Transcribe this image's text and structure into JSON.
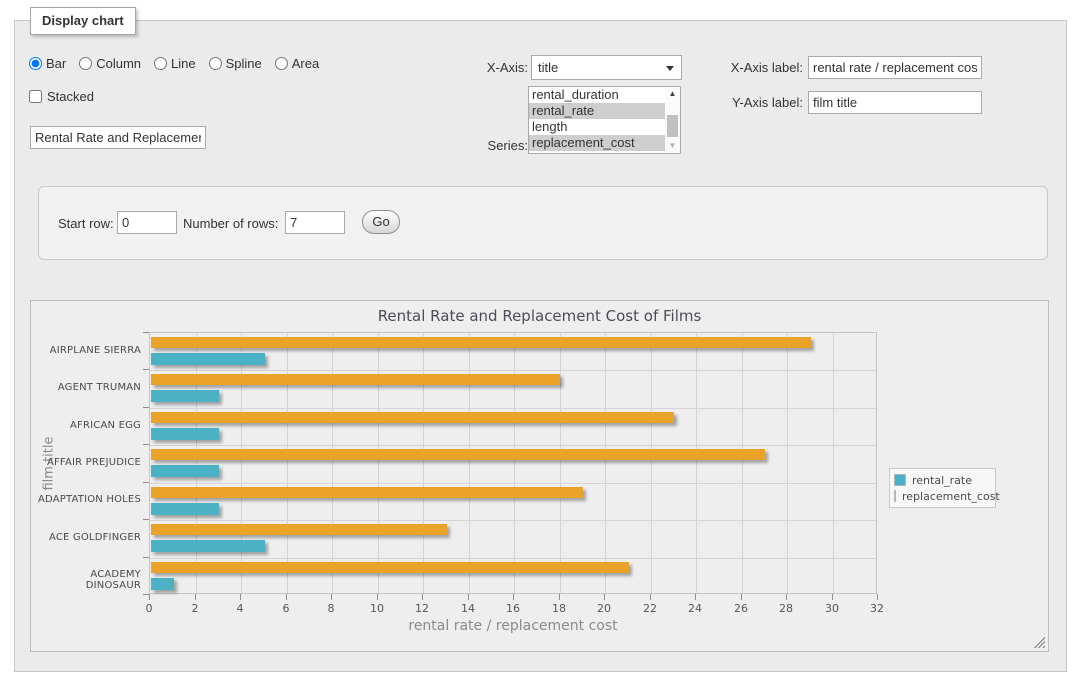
{
  "fieldset": {
    "legend": "Display chart"
  },
  "chart_type": {
    "options": [
      {
        "label": "Bar",
        "selected": true
      },
      {
        "label": "Column",
        "selected": false
      },
      {
        "label": "Line",
        "selected": false
      },
      {
        "label": "Spline",
        "selected": false
      },
      {
        "label": "Area",
        "selected": false
      }
    ]
  },
  "stacked": {
    "label": "Stacked",
    "checked": false
  },
  "chart_title_input": {
    "value": "Rental Rate and Replacement Cost of Films"
  },
  "x_axis_select": {
    "label": "X-Axis:",
    "value": "title"
  },
  "series_select": {
    "label": "Series:",
    "options": [
      {
        "label": "rental_duration",
        "selected": false
      },
      {
        "label": "rental_rate",
        "selected": true
      },
      {
        "label": "length",
        "selected": false
      },
      {
        "label": "replacement_cost",
        "selected": true
      }
    ]
  },
  "x_axis_label_input": {
    "label": "X-Axis label:",
    "value": "rental rate / replacement cost"
  },
  "y_axis_label_input": {
    "label": "Y-Axis label:",
    "value": "film title"
  },
  "row_controls": {
    "start_row_label": "Start row:",
    "start_row_value": "0",
    "num_rows_label": "Number of rows:",
    "num_rows_value": "7",
    "go_label": "Go"
  },
  "chart_data": {
    "type": "bar",
    "orientation": "horizontal",
    "title": "Rental Rate and Replacement Cost of Films",
    "xlabel": "rental rate / replacement cost",
    "ylabel": "film title",
    "categories": [
      "AIRPLANE SIERRA",
      "AGENT TRUMAN",
      "AFRICAN EGG",
      "AFFAIR PREJUDICE",
      "ADAPTATION HOLES",
      "ACE GOLDFINGER",
      "ACADEMY DINOSAUR"
    ],
    "series": [
      {
        "name": "rental_rate",
        "color": "#4bb2c5",
        "values": [
          4.99,
          2.99,
          2.99,
          2.99,
          2.99,
          4.99,
          0.99
        ]
      },
      {
        "name": "replacement_cost",
        "color": "#eaa228",
        "values": [
          28.99,
          17.99,
          22.99,
          26.99,
          18.99,
          12.99,
          20.99
        ]
      }
    ],
    "xlim": [
      0,
      32
    ],
    "xtick_step": 2,
    "grid": true,
    "legend_position": "right",
    "colors": {
      "grid_background": "#eeeeee",
      "grid_line": "#d4d4d4",
      "grid_border": "#c3c3c3",
      "tick_label": "#565656",
      "axis_title": "#8a8a8a",
      "chart_title": "#4c4c5a"
    }
  }
}
